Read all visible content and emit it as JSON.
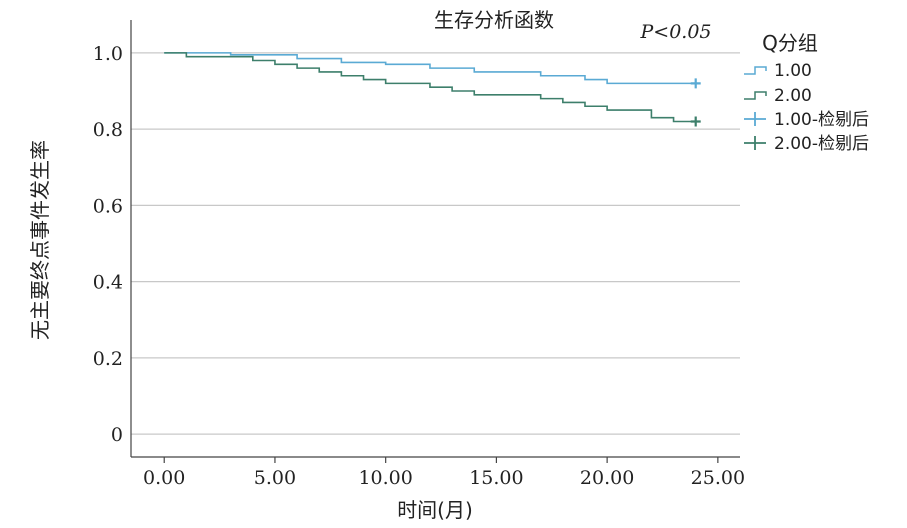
{
  "chart_data": {
    "type": "line",
    "title": "生存分析函数",
    "annotation": "P<0.05",
    "xlabel": "时间(月)",
    "ylabel": "无主要终点事件发生率",
    "xlim": [
      -1.5,
      26
    ],
    "ylim": [
      -0.06,
      1.06
    ],
    "xticks": [
      0,
      5,
      10,
      15,
      20,
      25
    ],
    "xtick_labels": [
      "0.00",
      "5.00",
      "10.00",
      "15.00",
      "20.00",
      "25.00"
    ],
    "yticks": [
      0,
      0.2,
      0.4,
      0.6,
      0.8,
      1.0
    ],
    "ytick_labels": [
      "0",
      "0.2",
      "0.4",
      "0.6",
      "0.8",
      "1.0"
    ],
    "grid": "horizontal",
    "legend": {
      "title": "Q分组",
      "placement": "right",
      "entries": [
        "1.00",
        "2.00",
        "1.00-检剔后",
        "2.00-检剔后"
      ]
    },
    "series": [
      {
        "name": "1.00",
        "color": "#5aaad4",
        "x": [
          0,
          1,
          3,
          6,
          8,
          10,
          12,
          14,
          17,
          19,
          20,
          24
        ],
        "y": [
          1.0,
          1.0,
          0.995,
          0.985,
          0.975,
          0.97,
          0.96,
          0.95,
          0.94,
          0.93,
          0.92,
          0.92
        ],
        "censored": [
          [
            24,
            0.92
          ]
        ]
      },
      {
        "name": "2.00",
        "color": "#3d7f6b",
        "x": [
          0,
          1,
          3,
          4,
          5,
          6,
          7,
          8,
          9,
          10,
          12,
          13,
          14,
          17,
          18,
          19,
          20,
          22,
          23,
          24
        ],
        "y": [
          1.0,
          0.99,
          0.99,
          0.98,
          0.97,
          0.96,
          0.95,
          0.94,
          0.93,
          0.92,
          0.91,
          0.9,
          0.89,
          0.88,
          0.87,
          0.86,
          0.85,
          0.83,
          0.82,
          0.82
        ],
        "censored": [
          [
            24,
            0.82
          ]
        ]
      }
    ]
  }
}
